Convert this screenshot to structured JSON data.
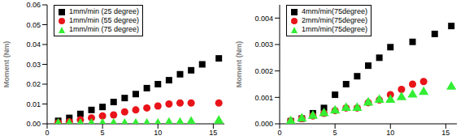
{
  "chart_data": [
    {
      "type": "scatter",
      "y_label": "Moment (Nm)",
      "legend": "upper left",
      "xlim": [
        0,
        16
      ],
      "xticks": [
        0,
        5,
        10,
        15
      ],
      "ylim": [
        0,
        0.06
      ],
      "yticks": [
        {
          "value": 0,
          "label": "0.00"
        },
        0.01,
        0.02,
        0.03,
        0.04,
        0.05,
        0.06
      ],
      "series": [
        {
          "name": "1mm/min (25 degree)",
          "color": "#000000",
          "marker": "square",
          "x": [
            1,
            2,
            3,
            4,
            5,
            6,
            7,
            8,
            9,
            10,
            11,
            12,
            13,
            14,
            15.5
          ],
          "values": [
            0.0015,
            0.003,
            0.005,
            0.007,
            0.0085,
            0.011,
            0.013,
            0.015,
            0.018,
            0.02,
            0.022,
            0.025,
            0.027,
            0.03,
            0.033
          ]
        },
        {
          "name": "1mm/min (55 degree)",
          "color": "#e8141a",
          "marker": "circle",
          "x": [
            1,
            2,
            3,
            4,
            5,
            6,
            7,
            8,
            9,
            10,
            11,
            12,
            13,
            15.5
          ],
          "values": [
            0.0005,
            0.001,
            0.002,
            0.003,
            0.004,
            0.0045,
            0.006,
            0.007,
            0.008,
            0.009,
            0.01,
            0.0105,
            0.0105,
            0.0105
          ]
        },
        {
          "name": "1mm/min (75 degree)",
          "color": "#33ee33",
          "marker": "triangle",
          "x": [
            1,
            2,
            3,
            4,
            5,
            6,
            7,
            8,
            9,
            10,
            11,
            12,
            13,
            15.5
          ],
          "values": [
            0,
            0,
            0,
            0,
            0,
            0,
            0,
            0,
            0,
            0,
            0.0005,
            0.0005,
            0.001,
            0.0015
          ]
        }
      ]
    },
    {
      "type": "scatter",
      "y_label": "Moment (Nm)",
      "legend": "upper left",
      "xlim": [
        0,
        16
      ],
      "xticks": [
        0,
        5,
        10,
        15
      ],
      "ylim": [
        0,
        0.0045
      ],
      "yticks": [
        {
          "value": 0,
          "label": "0.000"
        },
        0.001,
        0.002,
        0.003,
        0.004
      ],
      "series": [
        {
          "name": "4mm/min(75degree)",
          "color": "#000000",
          "marker": "square",
          "x": [
            1,
            2,
            3,
            4,
            5,
            6,
            7,
            8,
            9,
            10,
            12,
            14,
            15.5
          ],
          "values": [
            0.0001,
            0.0002,
            0.0004,
            0.0006,
            0.0011,
            0.0015,
            0.0018,
            0.0022,
            0.0025,
            0.0029,
            0.0031,
            0.0034,
            0.0037
          ]
        },
        {
          "name": "2mm/min(75degree)",
          "color": "#e8141a",
          "marker": "circle",
          "x": [
            1,
            2,
            3,
            4,
            5,
            6,
            7,
            8,
            9,
            10,
            11,
            12,
            13
          ],
          "values": [
            0.0001,
            0.0002,
            0.0003,
            0.0004,
            0.0005,
            0.0006,
            0.0006,
            0.0008,
            0.0009,
            0.0011,
            0.0013,
            0.0015,
            0.0016
          ]
        },
        {
          "name": "1mm/min(75degree)",
          "color": "#33ee33",
          "marker": "triangle",
          "x": [
            1,
            2,
            3,
            4,
            5,
            6,
            7,
            8,
            9,
            10,
            11,
            12,
            13,
            15.5
          ],
          "values": [
            0.0001,
            0.0002,
            0.0003,
            0.0004,
            0.0005,
            0.0006,
            0.0006,
            0.0008,
            0.0009,
            0.0009,
            0.001,
            0.0011,
            0.0012,
            0.0014
          ]
        }
      ]
    }
  ]
}
